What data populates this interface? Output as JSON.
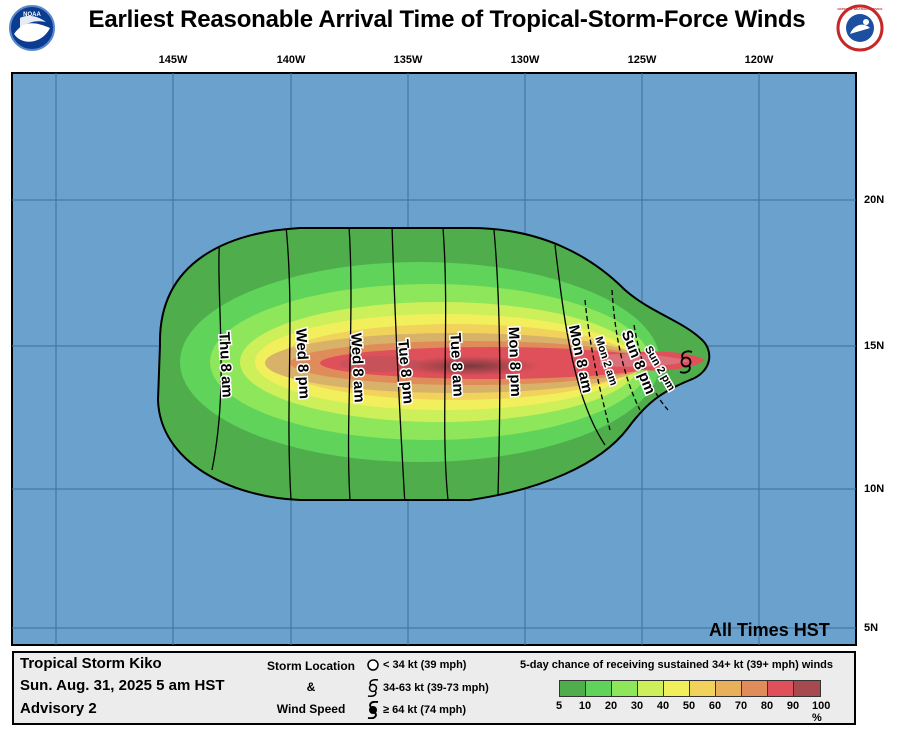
{
  "title": "Earliest Reasonable Arrival Time of Tropical-Storm-Force Winds",
  "logos": {
    "left": "NOAA",
    "right": "NATIONAL WEATHER SERVICE"
  },
  "colors": {
    "ocean": "#6aa1cd",
    "grid": "#3f6f98",
    "frame": "#000000"
  },
  "map_data": {
    "longitude_labels": [
      "145W",
      "140W",
      "135W",
      "130W",
      "125W",
      "120W"
    ],
    "latitude_labels": [
      "20N",
      "15N",
      "10N",
      "5N"
    ],
    "time_contours": [
      {
        "label": "Thu 8 am"
      },
      {
        "label": "Wed 8 pm"
      },
      {
        "label": "Wed 8 am"
      },
      {
        "label": "Tue 8 pm"
      },
      {
        "label": "Tue 8 am"
      },
      {
        "label": "Mon 8 pm"
      },
      {
        "label": "Mon 8 am"
      },
      {
        "label": "Mon 2 am"
      },
      {
        "label": "Sun 8 pm"
      },
      {
        "label": "Sun 2 pm"
      }
    ],
    "probability_field": {
      "min_percent": 5,
      "max_percent": 90
    }
  },
  "timezone_note": "All Times HST",
  "legend": {
    "storm_name": "Tropical Storm Kiko",
    "date": "Sun. Aug. 31, 2025  5 am HST",
    "advisory": "Advisory 2",
    "storm_location_label": "Storm Location",
    "amp": "&",
    "wind_speed_label": "Wind Speed",
    "symbols": [
      {
        "icon": "circle-icon",
        "text": "< 34 kt (39 mph)"
      },
      {
        "icon": "tropical-storm-icon",
        "text": "34-63 kt (39-73 mph)"
      },
      {
        "icon": "hurricane-icon",
        "text": "≥ 64 kt (74 mph)"
      }
    ],
    "probability_title": "5-day chance of receiving sustained 34+ kt (39+ mph) winds",
    "probability_levels": [
      "5",
      "10",
      "20",
      "30",
      "40",
      "50",
      "60",
      "70",
      "80",
      "90",
      "100 %"
    ],
    "probability_colors": [
      "#4fae4b",
      "#5fd35a",
      "#8ee65a",
      "#cdf05a",
      "#f1f05c",
      "#f1d35c",
      "#e9b05c",
      "#e08c5a",
      "#e0505a",
      "#a64a4f",
      "#b24dbd"
    ]
  }
}
